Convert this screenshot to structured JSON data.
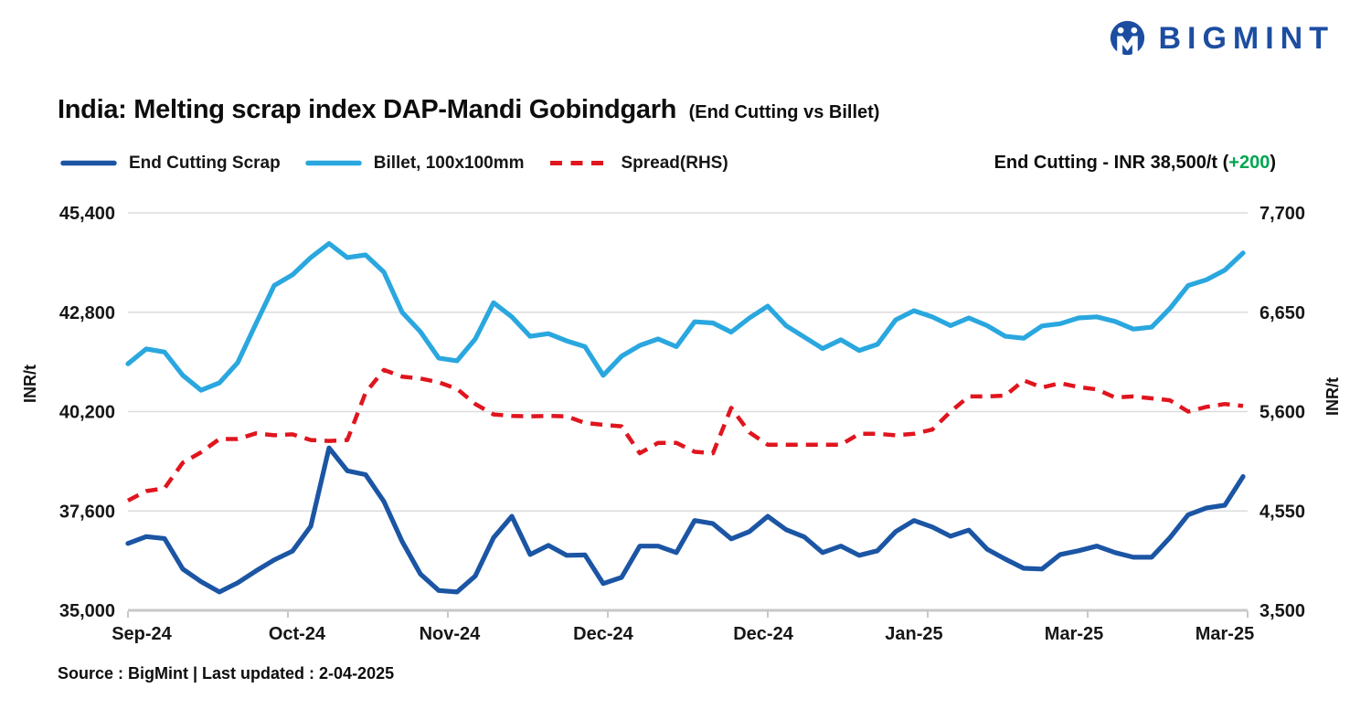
{
  "logo": {
    "wordmark": "BIGMINT"
  },
  "title": {
    "main": "India: Melting scrap index DAP-Mandi Gobindgarh",
    "suffix": "(End Cutting vs Billet)"
  },
  "legend": {
    "items": [
      {
        "label": "End Cutting Scrap"
      },
      {
        "label": "Billet, 100x100mm"
      },
      {
        "label": "Spread(RHS)"
      }
    ]
  },
  "annotation": {
    "prefix": "End Cutting - INR 38,500/t (",
    "change": "+200",
    "suffix": ")"
  },
  "source_line": "Source : BigMint | Last updated : 2-04-2025",
  "colors": {
    "end_cutting": "#1B55A4",
    "billet": "#2AA7DF",
    "spread": "#E0151E",
    "accent_green": "#00A651",
    "logo_blue": "#1C4DA1",
    "grid": "#DCDCDC",
    "axis_line": "#C8C8C8",
    "text": "#111111"
  },
  "chart_data": {
    "type": "line",
    "title": "India: Melting scrap index DAP-Mandi Gobindgarh (End Cutting vs Billet)",
    "grid": true,
    "legend_position": "top-left",
    "left_axis": {
      "label": "INR/t",
      "min": 35000,
      "max": 45400,
      "ticks": [
        "35,000",
        "37,600",
        "40,200",
        "42,800",
        "45,400"
      ]
    },
    "right_axis": {
      "label": "INR/t",
      "min": 3500,
      "max": 7700,
      "ticks": [
        "3,500",
        "4,550",
        "5,600",
        "6,650",
        "7,700"
      ]
    },
    "x_ticks": [
      {
        "label": "Sep-24",
        "pos": 0.0123
      },
      {
        "label": "Oct-24",
        "pos": 0.1516
      },
      {
        "label": "Nov-24",
        "pos": 0.2885
      },
      {
        "label": "Dec-24",
        "pos": 0.4262
      },
      {
        "label": "Dec-24",
        "pos": 0.5697
      },
      {
        "label": "Jan-25",
        "pos": 0.7049
      },
      {
        "label": "Mar-25",
        "pos": 0.8484
      },
      {
        "label": "Mar-25",
        "pos": 0.9836
      }
    ],
    "series": [
      {
        "id": "billet",
        "name": "Billet, 100x100mm",
        "axis": "left",
        "style": "solid",
        "color_key": "billet",
        "values": [
          41450,
          41840,
          41760,
          41150,
          40760,
          40950,
          41480,
          42500,
          43500,
          43780,
          44230,
          44600,
          44230,
          44300,
          43850,
          42800,
          42290,
          41600,
          41530,
          42100,
          43050,
          42680,
          42170,
          42240,
          42050,
          41900,
          41150,
          41650,
          41930,
          42100,
          41900,
          42550,
          42520,
          42280,
          42650,
          42960,
          42450,
          42150,
          41850,
          42080,
          41800,
          41960,
          42600,
          42840,
          42680,
          42450,
          42650,
          42450,
          42170,
          42120,
          42440,
          42500,
          42650,
          42680,
          42560,
          42360,
          42410,
          42900,
          43500,
          43650,
          43900,
          44350
        ]
      },
      {
        "id": "end_cutting",
        "name": "End Cutting Scrap",
        "axis": "left",
        "style": "solid",
        "color_key": "end_cutting",
        "values": [
          36750,
          36930,
          36880,
          36080,
          35750,
          35480,
          35720,
          36030,
          36320,
          36550,
          37200,
          39250,
          38650,
          38550,
          37850,
          36800,
          35950,
          35520,
          35480,
          35900,
          36900,
          37460,
          36460,
          36700,
          36440,
          36450,
          35700,
          35860,
          36680,
          36680,
          36510,
          37350,
          37270,
          36870,
          37060,
          37460,
          37110,
          36920,
          36510,
          36680,
          36440,
          36560,
          37060,
          37350,
          37180,
          36940,
          37100,
          36600,
          36340,
          36100,
          36080,
          36460,
          36560,
          36680,
          36510,
          36390,
          36390,
          36900,
          37500,
          37680,
          37750,
          38500
        ]
      },
      {
        "id": "spread",
        "name": "Spread(RHS)",
        "axis": "right",
        "style": "dashed",
        "color_key": "spread",
        "values": [
          4660,
          4760,
          4790,
          5060,
          5170,
          5310,
          5310,
          5370,
          5350,
          5360,
          5300,
          5290,
          5300,
          5800,
          6040,
          5970,
          5950,
          5910,
          5840,
          5680,
          5570,
          5555,
          5550,
          5555,
          5550,
          5480,
          5460,
          5445,
          5160,
          5270,
          5270,
          5175,
          5160,
          5640,
          5380,
          5250,
          5250,
          5250,
          5250,
          5250,
          5365,
          5365,
          5350,
          5365,
          5410,
          5600,
          5760,
          5760,
          5770,
          5930,
          5855,
          5900,
          5860,
          5835,
          5750,
          5760,
          5740,
          5720,
          5600,
          5650,
          5680,
          5660
        ]
      }
    ]
  }
}
